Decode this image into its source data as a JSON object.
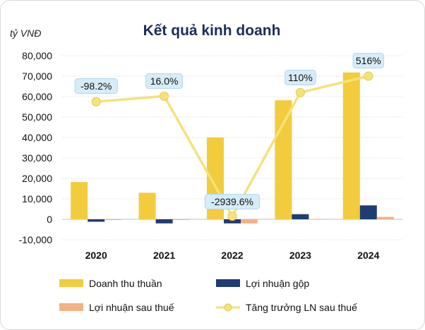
{
  "chart_data": {
    "type": "bar",
    "title": "Kết quả kinh doanh",
    "unit_label": "tỷ VNĐ",
    "categories": [
      "2020",
      "2021",
      "2022",
      "2023",
      "2024"
    ],
    "ylim": [
      -10000,
      80000
    ],
    "yticks": [
      "-10,000",
      "0",
      "10,000",
      "20,000",
      "30,000",
      "40,000",
      "50,000",
      "60,000",
      "70,000",
      "80,000"
    ],
    "ytick_values": [
      -10000,
      0,
      10000,
      20000,
      30000,
      40000,
      50000,
      60000,
      70000,
      80000
    ],
    "grid": true,
    "legend_position": "bottom",
    "series": [
      {
        "name": "Doanh thu thuần",
        "type": "bar",
        "color": "#f2cc3d",
        "values": [
          18200,
          13000,
          40000,
          58200,
          71800
        ]
      },
      {
        "name": "Lợi nhuận gộp",
        "type": "bar",
        "color": "#1f3c74",
        "values": [
          -1200,
          -2000,
          -2000,
          2500,
          6800
        ]
      },
      {
        "name": "Lợi nhuận sau thuế",
        "type": "bar",
        "color": "#f4b183",
        "values": [
          -200,
          -100,
          -2000,
          200,
          1200
        ]
      },
      {
        "name": "Tăng trưởng LN sau thuế",
        "type": "line",
        "color": "#f5e27a",
        "values": [
          -98.2,
          16.0,
          -2939.6,
          110,
          516
        ],
        "labels": [
          "-98.2%",
          "16.0%",
          "-2939.6%",
          "110%",
          "516%"
        ],
        "plot_y": [
          57500,
          60200,
          1500,
          62000,
          70000
        ]
      }
    ]
  }
}
